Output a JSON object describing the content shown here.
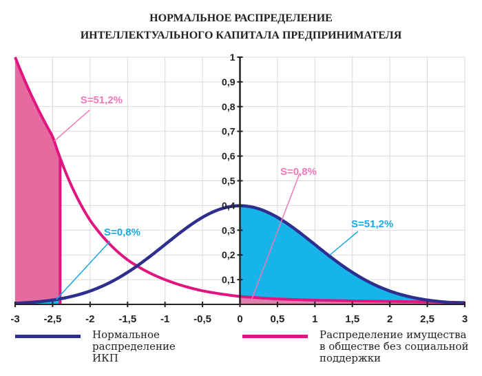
{
  "title": {
    "line1": "НОРМАЛЬНОЕ РАСПРЕДЕЛЕНИЕ",
    "line2": "ИНТЕЛЛЕКТУАЛЬНОГО КАПИТАЛА ПРЕДПРИНИМАТЕЛЯ"
  },
  "colors": {
    "normal": "#2e2e8f",
    "property": "#e0157f",
    "fill_blue": "#16b4e8",
    "fill_pink": "#e46a9f",
    "label_pink": "#f078b8",
    "label_blue": "#1aa8e0"
  },
  "chart_data": {
    "type": "line",
    "title": "НОРМАЛЬНОЕ РАСПРЕДЕЛЕНИЕ ИНТЕЛЛЕКТУАЛЬНОГО КАПИТАЛА ПРЕДПРИНИМАТЕЛЯ",
    "xlim": [
      -3,
      3
    ],
    "ylim": [
      0,
      1
    ],
    "x_ticks": [
      "-3",
      "-2,5",
      "-2",
      "-1,5",
      "-1",
      "-0,5",
      "0",
      "0,5",
      "1",
      "1,5",
      "2",
      "2,5",
      "3"
    ],
    "y_ticks": [
      "0,1",
      "0,2",
      "0,3",
      "0,4",
      "0,5",
      "0,6",
      "0,7",
      "0,8",
      "0,9",
      "1"
    ],
    "grid": true,
    "series": [
      {
        "name": "Нормальное распределение ИКП",
        "x": [
          -3,
          -2.5,
          -2,
          -1.5,
          -1,
          -0.5,
          0,
          0.5,
          1,
          1.5,
          2,
          2.5,
          3
        ],
        "values": [
          0.004,
          0.018,
          0.054,
          0.13,
          0.242,
          0.352,
          0.399,
          0.352,
          0.242,
          0.13,
          0.054,
          0.018,
          0.004
        ]
      },
      {
        "name": "Распределение имущества в обществе без социальной поддержки",
        "x": [
          -3,
          -2.5,
          -2,
          -1.5,
          -1,
          -0.5,
          0,
          0.5,
          1,
          1.5,
          2,
          2.5,
          3
        ],
        "values": [
          1.0,
          0.68,
          0.34,
          0.18,
          0.1,
          0.055,
          0.032,
          0.022,
          0.017,
          0.014,
          0.012,
          0.01,
          0.008
        ]
      }
    ],
    "shaded_regions": [
      {
        "series": "Нормальное распределение ИКП",
        "from": 0,
        "to": 3,
        "label": "S=51,2%"
      },
      {
        "series": "Нормальное распределение ИКП",
        "from": -3,
        "to": -2.4,
        "label": "S=0,8%"
      },
      {
        "series": "Распределение имущества в обществе без социальной поддержки",
        "from": -3,
        "to": -2.4,
        "label": "S=51,2%"
      },
      {
        "series": "Распределение имущества в обществе без социальной поддержки",
        "from": 0,
        "to": 3,
        "label": "S=0,8%"
      }
    ],
    "legend": [
      {
        "label_line1": "Нормальное",
        "label_line2": "распределение ИКП"
      },
      {
        "label_line1": "Распределение имущества",
        "label_line2": "в обществе без социальной",
        "label_line3": "поддержки"
      }
    ]
  }
}
